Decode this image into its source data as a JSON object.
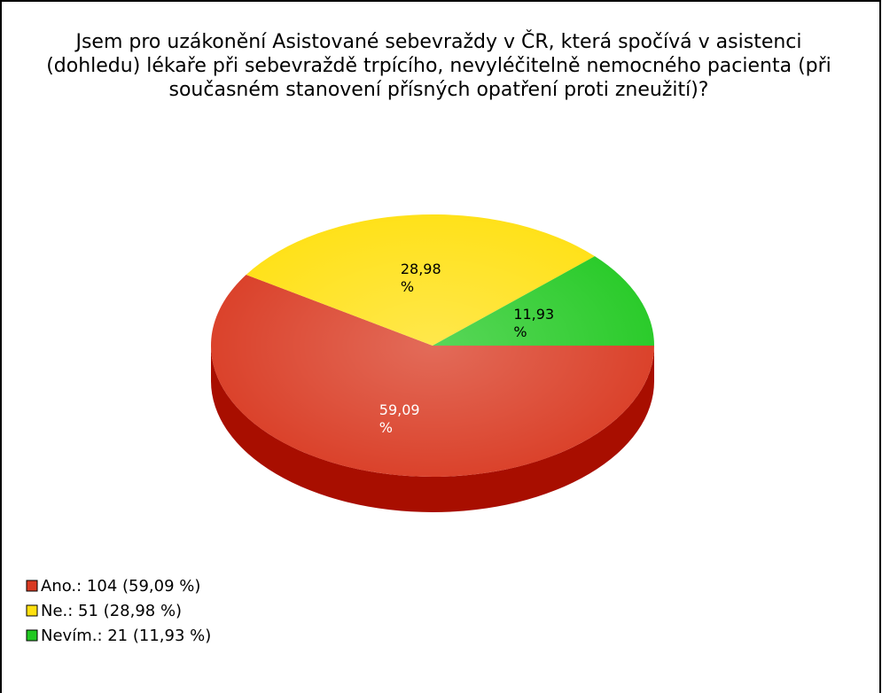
{
  "chart_data": {
    "type": "pie",
    "title": "Jsem pro uzákonění Asistované sebevraždy v ČR, která spočívá v asistenci (dohledu) lékaře při sebevraždě trpícího, nevyléčitelně nemocného pacienta (při současném stanovení přísných opatření proti zneužití)?",
    "categories": [
      "Ano.",
      "Ne.",
      "Nevím."
    ],
    "values": [
      59.09,
      28.98,
      11.93
    ],
    "value_labels": [
      "59,09 %",
      "28,98 %",
      "11,93 %"
    ],
    "counts": [
      104,
      51,
      21
    ],
    "legend_labels": [
      "Ano.: 104 (59,09 %)",
      "Ne.: 51 (28,98 %)",
      "Nevím.: 21 (11,93 %)"
    ],
    "colors": [
      "#d93a22",
      "#ffe010",
      "#22c922"
    ],
    "side_colors": [
      "#a80e00",
      "#c9a800",
      "#119a11"
    ],
    "value_label_colors": [
      "#ffffff",
      "#000000",
      "#000000"
    ],
    "legend": "bottom-left"
  }
}
